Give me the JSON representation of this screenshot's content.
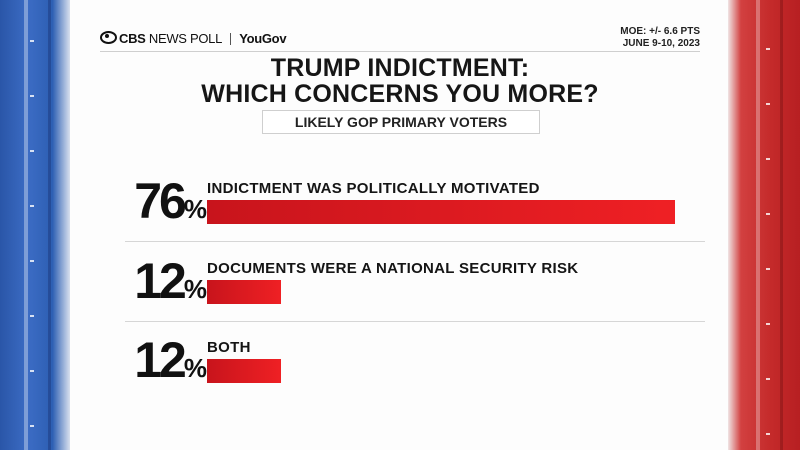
{
  "header": {
    "logo_brand": "CBS",
    "logo_news_poll": "NEWS POLL",
    "logo_partner": "YouGov",
    "moe": "MOE: +/- 6.6 PTS",
    "date": "JUNE 9-10, 2023"
  },
  "colors": {
    "bar": "#e3141b",
    "left_stripe": "#2f5fb5",
    "right_stripe": "#c52a2a"
  },
  "chart_data": {
    "type": "bar",
    "orientation": "horizontal",
    "title_line1": "TRUMP INDICTMENT:",
    "title_line2": "WHICH CONCERNS YOU MORE?",
    "subtitle": "LIKELY GOP PRIMARY VOTERS",
    "categories": [
      "INDICTMENT WAS POLITICALLY MOTIVATED",
      "DOCUMENTS WERE A NATIONAL SECURITY RISK",
      "BOTH"
    ],
    "values": [
      76,
      12,
      12
    ],
    "value_labels": [
      "76",
      "12",
      "12"
    ],
    "unit": "%",
    "xlim": [
      0,
      76
    ]
  }
}
